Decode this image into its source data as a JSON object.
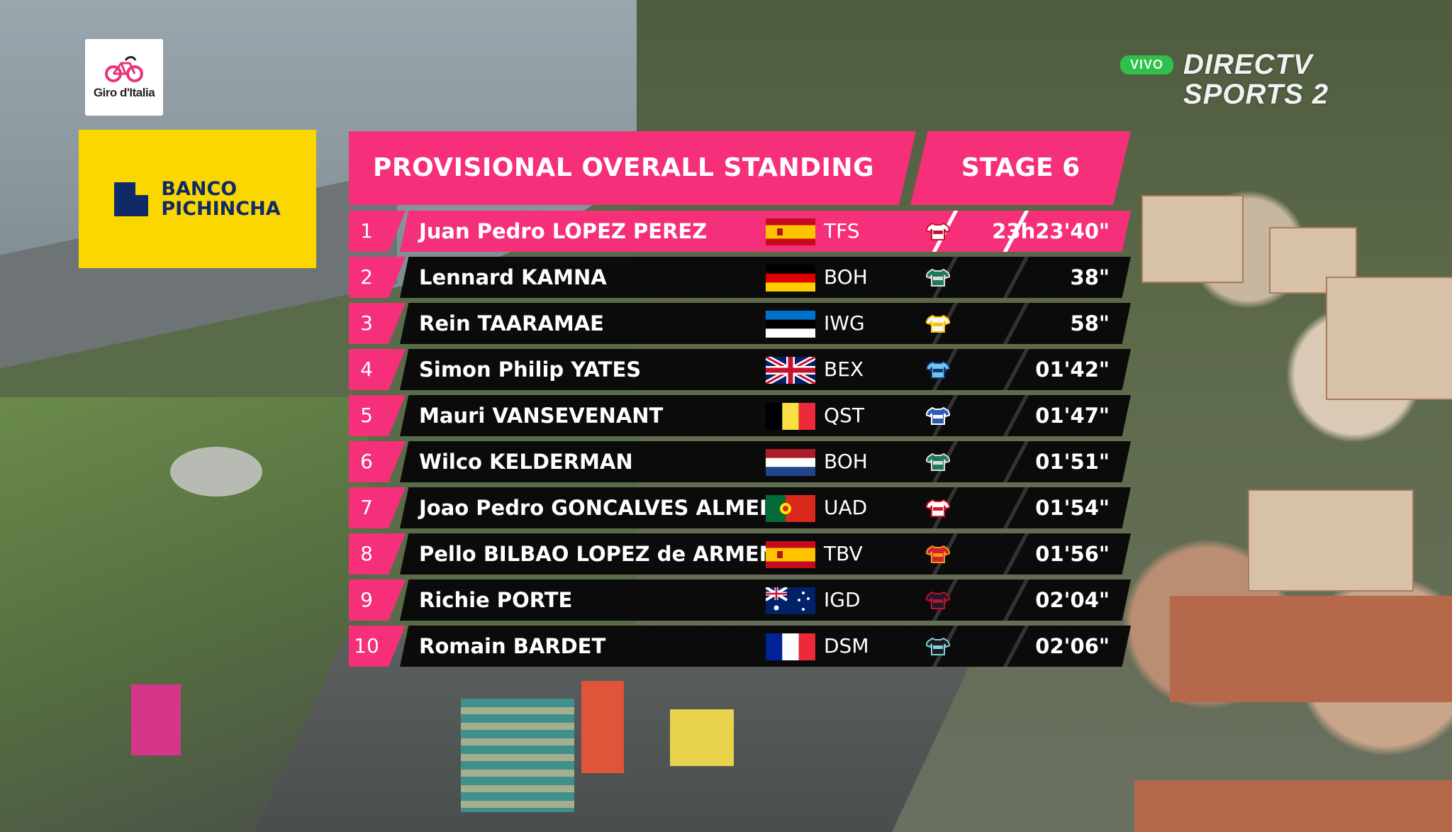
{
  "event_logo": {
    "text": "Giro d'Italia"
  },
  "sponsor": {
    "line1": "BANCO",
    "line2": "PICHINCHA"
  },
  "broadcaster": {
    "live_badge": "VIVO",
    "line1": "DIRECTV",
    "line2": "SPORTS 2"
  },
  "header": {
    "title": "PROVISIONAL OVERALL STANDING",
    "stage": "STAGE 6"
  },
  "colors": {
    "accent": "#f52f7a",
    "row_bg": "#0b0b0b",
    "sponsor_yellow": "#fbd700",
    "live_green": "#2fbf4a"
  },
  "standings": [
    {
      "pos": "1",
      "name": "Juan Pedro LOPEZ PEREZ",
      "flag": "spain-flag",
      "team": "TFS",
      "jersey": "trek-jersey-icon",
      "time": "23h23'40\""
    },
    {
      "pos": "2",
      "name": "Lennard KAMNA",
      "flag": "germany-flag",
      "team": "BOH",
      "jersey": "bora-jersey-icon",
      "time": "38\""
    },
    {
      "pos": "3",
      "name": "Rein TAARAMAE",
      "flag": "estonia-flag",
      "team": "IWG",
      "jersey": "intermarche-jersey-icon",
      "time": "58\""
    },
    {
      "pos": "4",
      "name": "Simon Philip YATES",
      "flag": "uk-flag",
      "team": "BEX",
      "jersey": "bikeexchange-jersey-icon",
      "time": "01'42\""
    },
    {
      "pos": "5",
      "name": "Mauri VANSEVENANT",
      "flag": "belgium-flag",
      "team": "QST",
      "jersey": "quickstep-jersey-icon",
      "time": "01'47\""
    },
    {
      "pos": "6",
      "name": "Wilco KELDERMAN",
      "flag": "netherlands-flag",
      "team": "BOH",
      "jersey": "bora-jersey-icon",
      "time": "01'51\""
    },
    {
      "pos": "7",
      "name": "Joao Pedro GONCALVES ALMEIDA",
      "flag": "portugal-flag",
      "team": "UAD",
      "jersey": "uae-jersey-icon",
      "time": "01'54\""
    },
    {
      "pos": "8",
      "name": "Pello BILBAO LOPEZ de ARMENTIA",
      "flag": "spain-flag",
      "team": "TBV",
      "jersey": "bahrain-jersey-icon",
      "time": "01'56\""
    },
    {
      "pos": "9",
      "name": "Richie PORTE",
      "flag": "australia-flag",
      "team": "IGD",
      "jersey": "ineos-jersey-icon",
      "time": "02'04\""
    },
    {
      "pos": "10",
      "name": "Romain BARDET",
      "flag": "france-flag",
      "team": "DSM",
      "jersey": "dsm-jersey-icon",
      "time": "02'06\""
    }
  ]
}
